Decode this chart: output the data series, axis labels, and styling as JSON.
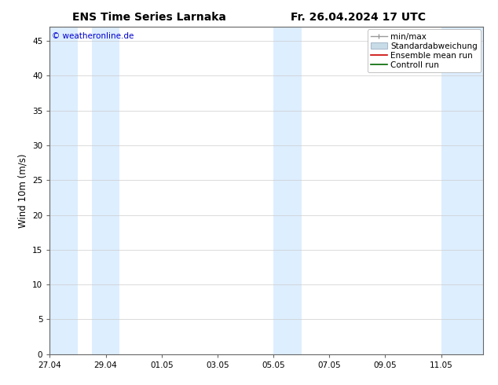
{
  "title_left": "ENS Time Series Larnaka",
  "title_right": "Fr. 26.04.2024 17 UTC",
  "ylabel": "Wind 10m (m/s)",
  "watermark": "© weatheronline.de",
  "watermark_color": "#0000cc",
  "ylim": [
    0,
    47
  ],
  "yticks": [
    0,
    5,
    10,
    15,
    20,
    25,
    30,
    35,
    40,
    45
  ],
  "bg_color": "#ffffff",
  "plot_bg_color": "#ffffff",
  "shade_color": "#ddeeff",
  "xtick_labels": [
    "27.04",
    "29.04",
    "01.05",
    "03.05",
    "05.05",
    "07.05",
    "09.05",
    "11.05"
  ],
  "xtick_positions": [
    0,
    2,
    4,
    6,
    8,
    10,
    12,
    14
  ],
  "shade_regions": [
    [
      0.0,
      1.0
    ],
    [
      1.5,
      2.5
    ],
    [
      8.0,
      9.0
    ],
    [
      14.0,
      15.5
    ]
  ],
  "xlim": [
    0,
    15.5
  ],
  "legend_labels": [
    "min/max",
    "Standardabweichung",
    "Ensemble mean run",
    "Controll run"
  ],
  "legend_minmax_color": "#999999",
  "legend_std_facecolor": "#c8dce8",
  "legend_std_edgecolor": "#aabbcc",
  "legend_ens_color": "#cc0000",
  "legend_ctrl_color": "#006600",
  "title_fontsize": 10,
  "label_fontsize": 8.5,
  "tick_fontsize": 7.5,
  "watermark_fontsize": 7.5,
  "legend_fontsize": 7.5
}
